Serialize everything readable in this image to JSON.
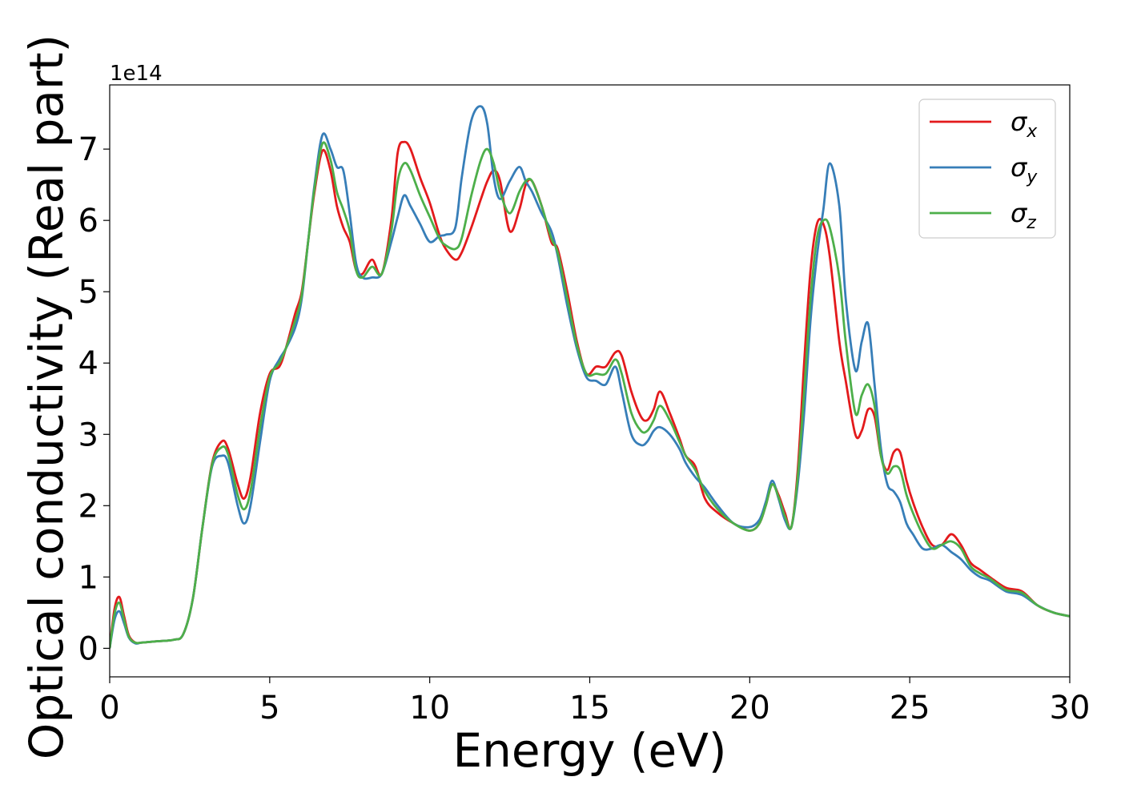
{
  "chart_data": {
    "type": "line",
    "xlabel": "Energy (eV)",
    "ylabel": "Optical conductivity (Real part)",
    "y_offset_label": "1e14",
    "xlim": [
      0,
      30
    ],
    "ylim": [
      -0.4,
      7.9
    ],
    "x_ticks": [
      0,
      5,
      10,
      15,
      20,
      25,
      30
    ],
    "y_ticks": [
      0,
      1,
      2,
      3,
      4,
      5,
      6,
      7
    ],
    "x_tick_labels": [
      "0",
      "5",
      "10",
      "15",
      "20",
      "25",
      "30"
    ],
    "y_tick_labels": [
      "0",
      "1",
      "2",
      "3",
      "4",
      "5",
      "6",
      "7"
    ],
    "grid": false,
    "legend_position": "top-right",
    "series": [
      {
        "name": "σx",
        "symbol": "σ",
        "subscript": "x",
        "color": "#e31a1c",
        "x": [
          0,
          0.15,
          0.3,
          0.45,
          0.6,
          0.8,
          1.0,
          1.5,
          2.0,
          2.3,
          2.6,
          2.9,
          3.2,
          3.5,
          3.7,
          4.0,
          4.2,
          4.4,
          4.7,
          5.0,
          5.3,
          5.5,
          5.8,
          6.0,
          6.2,
          6.4,
          6.65,
          6.9,
          7.1,
          7.3,
          7.5,
          7.7,
          7.9,
          8.2,
          8.5,
          8.8,
          9.0,
          9.2,
          9.4,
          9.7,
          10.0,
          10.3,
          10.5,
          10.8,
          11.0,
          11.3,
          11.6,
          11.8,
          12.0,
          12.2,
          12.5,
          12.8,
          13.0,
          13.2,
          13.5,
          13.8,
          14.0,
          14.3,
          14.6,
          14.9,
          15.2,
          15.5,
          15.8,
          16.0,
          16.3,
          16.6,
          16.8,
          17.0,
          17.2,
          17.5,
          17.8,
          18.0,
          18.3,
          18.6,
          19.0,
          19.5,
          20.0,
          20.3,
          20.5,
          20.7,
          20.9,
          21.1,
          21.3,
          21.5,
          21.7,
          21.9,
          22.1,
          22.3,
          22.5,
          22.8,
          23.0,
          23.3,
          23.5,
          23.7,
          23.9,
          24.1,
          24.3,
          24.5,
          24.7,
          24.9,
          25.1,
          25.4,
          25.7,
          26.0,
          26.3,
          26.6,
          26.9,
          27.2,
          27.5,
          28.0,
          28.5,
          29.0,
          29.5,
          30.0
        ],
        "y": [
          0.0,
          0.55,
          0.72,
          0.45,
          0.18,
          0.08,
          0.08,
          0.1,
          0.12,
          0.2,
          0.7,
          1.7,
          2.6,
          2.9,
          2.8,
          2.3,
          2.1,
          2.4,
          3.3,
          3.85,
          3.95,
          4.2,
          4.7,
          5.0,
          5.7,
          6.4,
          6.98,
          6.7,
          6.2,
          5.9,
          5.7,
          5.3,
          5.25,
          5.45,
          5.25,
          6.0,
          6.95,
          7.1,
          7.0,
          6.6,
          6.25,
          5.8,
          5.6,
          5.45,
          5.55,
          5.9,
          6.3,
          6.55,
          6.7,
          6.55,
          5.85,
          6.15,
          6.5,
          6.55,
          6.2,
          5.7,
          5.6,
          5.0,
          4.3,
          3.85,
          3.95,
          3.95,
          4.15,
          4.1,
          3.6,
          3.25,
          3.2,
          3.35,
          3.6,
          3.3,
          2.95,
          2.7,
          2.55,
          2.1,
          1.9,
          1.75,
          1.65,
          1.75,
          2.0,
          2.3,
          2.15,
          1.9,
          1.7,
          2.5,
          4.0,
          5.3,
          5.95,
          5.95,
          5.5,
          4.3,
          3.75,
          3.0,
          3.05,
          3.35,
          3.25,
          2.7,
          2.5,
          2.75,
          2.75,
          2.35,
          2.05,
          1.7,
          1.45,
          1.45,
          1.6,
          1.45,
          1.2,
          1.1,
          1.0,
          0.85,
          0.8,
          0.6,
          0.5,
          0.45
        ]
      },
      {
        "name": "σy",
        "symbol": "σ",
        "subscript": "y",
        "color": "#377eb8",
        "x": [
          0,
          0.15,
          0.3,
          0.45,
          0.6,
          0.8,
          1.0,
          1.5,
          2.0,
          2.3,
          2.6,
          2.9,
          3.2,
          3.5,
          3.7,
          4.0,
          4.2,
          4.4,
          4.7,
          5.0,
          5.3,
          5.5,
          5.8,
          6.0,
          6.2,
          6.4,
          6.65,
          6.9,
          7.1,
          7.3,
          7.5,
          7.7,
          7.9,
          8.2,
          8.5,
          8.8,
          9.0,
          9.2,
          9.4,
          9.7,
          10.0,
          10.3,
          10.5,
          10.8,
          11.0,
          11.3,
          11.6,
          11.8,
          12.0,
          12.2,
          12.5,
          12.8,
          13.0,
          13.2,
          13.5,
          13.8,
          14.0,
          14.3,
          14.6,
          14.9,
          15.2,
          15.5,
          15.8,
          16.0,
          16.3,
          16.6,
          16.8,
          17.0,
          17.2,
          17.5,
          17.8,
          18.0,
          18.3,
          18.6,
          19.0,
          19.5,
          20.0,
          20.3,
          20.5,
          20.7,
          20.9,
          21.1,
          21.3,
          21.5,
          21.7,
          21.9,
          22.1,
          22.3,
          22.5,
          22.8,
          23.0,
          23.3,
          23.5,
          23.7,
          23.9,
          24.1,
          24.3,
          24.5,
          24.7,
          24.9,
          25.1,
          25.4,
          25.7,
          26.0,
          26.3,
          26.6,
          26.9,
          27.2,
          27.5,
          28.0,
          28.5,
          29.0,
          29.5,
          30.0
        ],
        "y": [
          0.0,
          0.4,
          0.52,
          0.35,
          0.15,
          0.07,
          0.08,
          0.1,
          0.12,
          0.2,
          0.7,
          1.7,
          2.55,
          2.7,
          2.6,
          2.0,
          1.75,
          2.0,
          2.9,
          3.75,
          4.05,
          4.2,
          4.5,
          4.9,
          5.7,
          6.5,
          7.2,
          7.0,
          6.75,
          6.7,
          6.1,
          5.4,
          5.2,
          5.2,
          5.25,
          5.7,
          6.05,
          6.35,
          6.2,
          5.95,
          5.7,
          5.78,
          5.8,
          5.9,
          6.6,
          7.4,
          7.6,
          7.35,
          6.6,
          6.3,
          6.55,
          6.75,
          6.55,
          6.4,
          6.1,
          5.85,
          5.5,
          4.8,
          4.2,
          3.8,
          3.75,
          3.7,
          3.95,
          3.6,
          3.0,
          2.85,
          2.9,
          3.05,
          3.1,
          3.0,
          2.8,
          2.6,
          2.4,
          2.25,
          2.0,
          1.75,
          1.7,
          1.8,
          2.05,
          2.35,
          2.1,
          1.8,
          1.7,
          2.3,
          3.3,
          4.6,
          5.5,
          6.15,
          6.8,
          6.2,
          4.9,
          3.9,
          4.3,
          4.55,
          3.7,
          2.8,
          2.3,
          2.2,
          2.05,
          1.75,
          1.6,
          1.4,
          1.4,
          1.45,
          1.35,
          1.25,
          1.1,
          1.0,
          0.95,
          0.8,
          0.75,
          0.6,
          0.5,
          0.45
        ]
      },
      {
        "name": "σz",
        "symbol": "σ",
        "subscript": "z",
        "color": "#4daf4a",
        "x": [
          0,
          0.15,
          0.3,
          0.45,
          0.6,
          0.8,
          1.0,
          1.5,
          2.0,
          2.3,
          2.6,
          2.9,
          3.2,
          3.5,
          3.7,
          4.0,
          4.2,
          4.4,
          4.7,
          5.0,
          5.3,
          5.5,
          5.8,
          6.0,
          6.2,
          6.4,
          6.65,
          6.9,
          7.1,
          7.3,
          7.5,
          7.7,
          7.9,
          8.2,
          8.5,
          8.8,
          9.0,
          9.2,
          9.4,
          9.7,
          10.0,
          10.3,
          10.5,
          10.8,
          11.0,
          11.3,
          11.6,
          11.8,
          12.0,
          12.2,
          12.5,
          12.8,
          13.0,
          13.2,
          13.5,
          13.8,
          14.0,
          14.3,
          14.6,
          14.9,
          15.2,
          15.5,
          15.8,
          16.0,
          16.3,
          16.6,
          16.8,
          17.0,
          17.2,
          17.5,
          17.8,
          18.0,
          18.3,
          18.6,
          19.0,
          19.5,
          20.0,
          20.3,
          20.5,
          20.7,
          20.9,
          21.1,
          21.3,
          21.5,
          21.7,
          21.9,
          22.1,
          22.3,
          22.5,
          22.8,
          23.0,
          23.3,
          23.5,
          23.7,
          23.9,
          24.1,
          24.3,
          24.5,
          24.7,
          24.9,
          25.1,
          25.4,
          25.7,
          26.0,
          26.3,
          26.6,
          26.9,
          27.2,
          27.5,
          28.0,
          28.5,
          29.0,
          29.5,
          30.0
        ],
        "y": [
          0.0,
          0.48,
          0.64,
          0.4,
          0.16,
          0.08,
          0.08,
          0.1,
          0.12,
          0.2,
          0.7,
          1.7,
          2.58,
          2.82,
          2.72,
          2.15,
          1.95,
          2.2,
          3.1,
          3.8,
          4.0,
          4.2,
          4.6,
          4.95,
          5.7,
          6.45,
          7.08,
          6.85,
          6.4,
          6.15,
          5.85,
          5.3,
          5.2,
          5.35,
          5.25,
          5.85,
          6.55,
          6.8,
          6.7,
          6.35,
          6.05,
          5.75,
          5.65,
          5.6,
          5.75,
          6.35,
          6.85,
          7.0,
          6.8,
          6.4,
          6.1,
          6.4,
          6.55,
          6.55,
          6.2,
          5.75,
          5.55,
          4.9,
          4.25,
          3.85,
          3.85,
          3.85,
          4.05,
          3.85,
          3.3,
          3.05,
          3.05,
          3.2,
          3.4,
          3.2,
          2.9,
          2.7,
          2.5,
          2.2,
          1.95,
          1.75,
          1.65,
          1.75,
          2.0,
          2.3,
          2.12,
          1.85,
          1.7,
          2.4,
          3.6,
          4.9,
          5.75,
          6.0,
          5.9,
          5.2,
          4.3,
          3.3,
          3.55,
          3.7,
          3.4,
          2.7,
          2.45,
          2.55,
          2.5,
          2.15,
          1.9,
          1.6,
          1.4,
          1.45,
          1.5,
          1.4,
          1.15,
          1.05,
          0.98,
          0.82,
          0.78,
          0.6,
          0.5,
          0.45
        ]
      }
    ]
  }
}
